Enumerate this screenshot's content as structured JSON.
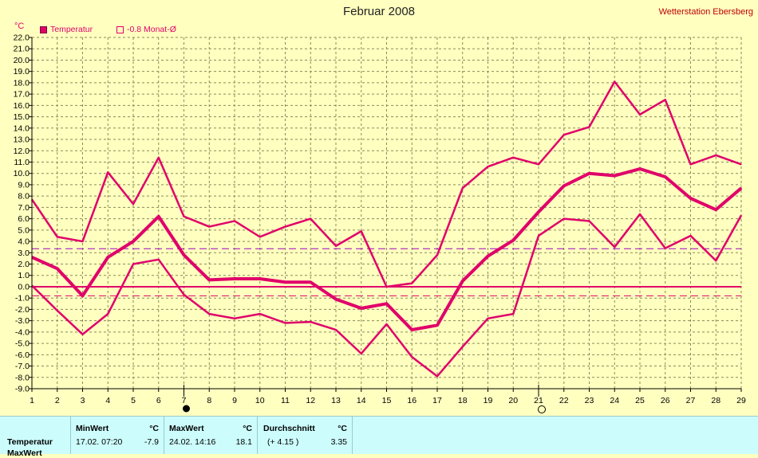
{
  "title": "Februar 2008",
  "station": "Wetterstation Ebersberg",
  "unit": "°C",
  "legend": {
    "temperature": "Temperatur",
    "monthly_avg": "-0.8 Monat-Ø"
  },
  "colors": {
    "series": "#e0006a",
    "avg_line": "#a000c0",
    "grid": "#8a8a5a",
    "background": "#ffffc0"
  },
  "chart_data": {
    "type": "line",
    "title": "Februar 2008",
    "ylabel": "°C",
    "ylim": [
      -9,
      22
    ],
    "yticks": [
      "22.0",
      "21.0",
      "20.0",
      "19.0",
      "18.0",
      "17.0",
      "16.0",
      "15.0",
      "14.0",
      "13.0",
      "12.0",
      "11.0",
      "10.0",
      "9.0",
      "8.0",
      "7.0",
      "6.0",
      "5.0",
      "4.0",
      "3.0",
      "2.0",
      "1.0",
      "0.0",
      "-1.0",
      "-2.0",
      "-3.0",
      "-4.0",
      "-5.0",
      "-6.0",
      "-7.0",
      "-8.0",
      "-9.0"
    ],
    "x": [
      1,
      2,
      3,
      4,
      5,
      6,
      7,
      8,
      9,
      10,
      11,
      12,
      13,
      14,
      15,
      16,
      17,
      18,
      19,
      20,
      21,
      22,
      23,
      24,
      25,
      26,
      27,
      28,
      29
    ],
    "grid": true,
    "series": [
      {
        "name": "Max",
        "width": 2.5,
        "values": [
          7.7,
          4.4,
          4.0,
          10.1,
          7.3,
          11.4,
          6.2,
          5.3,
          5.8,
          4.4,
          5.3,
          6.0,
          3.6,
          4.9,
          0.0,
          0.3,
          2.8,
          8.7,
          10.6,
          11.4,
          10.8,
          13.4,
          14.1,
          18.1,
          15.2,
          16.5,
          10.8,
          11.6,
          10.8
        ]
      },
      {
        "name": "Temperatur",
        "width": 4,
        "values": [
          2.6,
          1.6,
          -0.8,
          2.6,
          4.0,
          6.2,
          2.8,
          0.6,
          0.7,
          0.7,
          0.4,
          0.4,
          -1.1,
          -1.9,
          -1.5,
          -3.8,
          -3.4,
          0.5,
          2.7,
          4.1,
          6.6,
          8.9,
          10.0,
          9.8,
          10.4,
          9.7,
          7.8,
          6.8,
          8.7
        ]
      },
      {
        "name": "Min",
        "width": 2.5,
        "values": [
          0.1,
          -2.1,
          -4.2,
          -2.4,
          2.0,
          2.4,
          -0.7,
          -2.4,
          -2.8,
          -2.4,
          -3.2,
          -3.1,
          -3.8,
          -5.9,
          -3.3,
          -6.2,
          -7.9,
          -5.3,
          -2.8,
          -2.4,
          4.5,
          6.0,
          5.8,
          3.5,
          6.4,
          3.4,
          4.5,
          2.3,
          6.3
        ]
      }
    ],
    "reference_lines": [
      {
        "label": "-0.8 Monat-Ø",
        "value": -0.8,
        "style": "dashed"
      },
      {
        "value": 3.35,
        "style": "dashed",
        "color": "#a000c0"
      },
      {
        "value": 0.0,
        "style": "solid"
      }
    ],
    "moon_phases": [
      {
        "day": 7,
        "phase": "new"
      },
      {
        "day": 21,
        "phase": "full"
      }
    ]
  },
  "stats": {
    "row_labels": [
      "Temperatur",
      "MaxWert"
    ],
    "min": {
      "header": "MinWert",
      "unit": "°C",
      "datetime": "17.02.  07:20",
      "value": "-7.9"
    },
    "max": {
      "header": "MaxWert",
      "unit": "°C",
      "datetime": "24.02.  14:16",
      "value": "18.1"
    },
    "avg": {
      "header": "Durchschnitt",
      "unit": "°C",
      "delta": "(+ 4.15 )",
      "value": "3.35"
    }
  }
}
